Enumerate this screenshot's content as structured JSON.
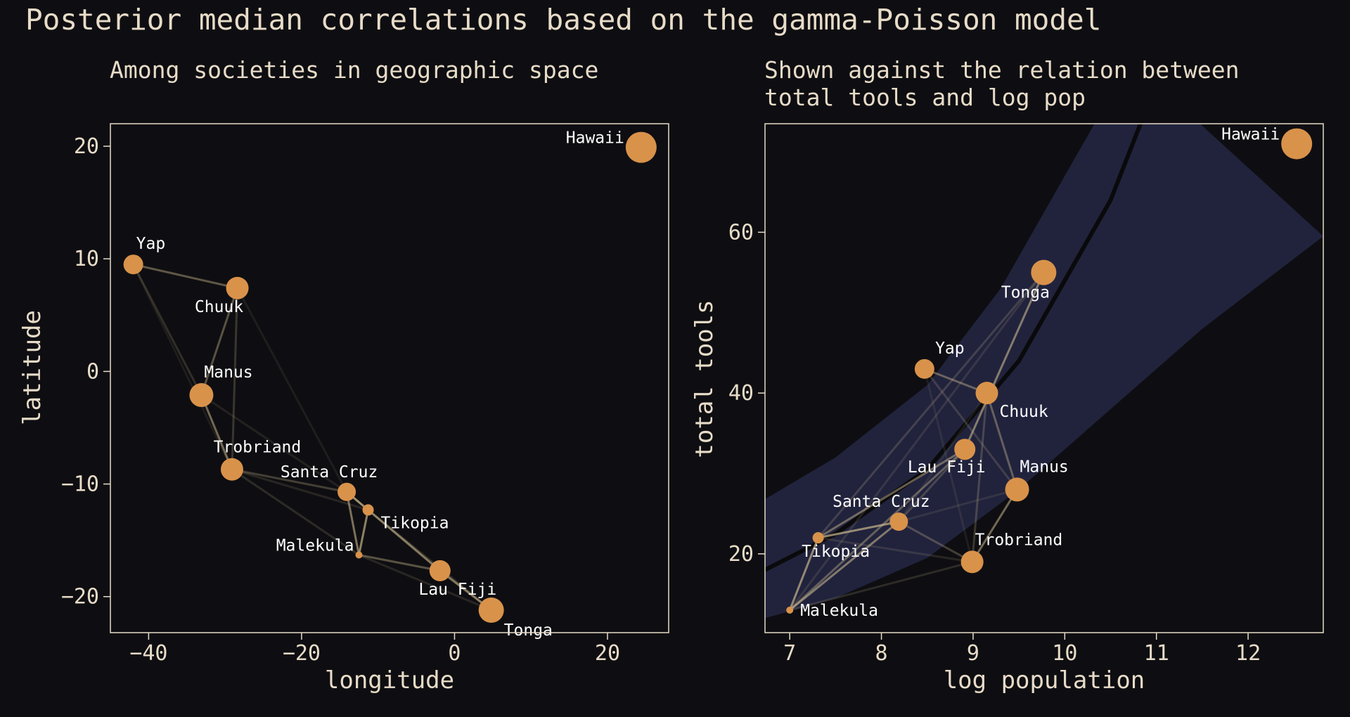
{
  "figure": {
    "title": "Posterior median correlations based on the gamma-Poisson model"
  },
  "colors": {
    "background": "#0e0e12",
    "text": "#e8dcc8",
    "point": "#d9924a",
    "edge": "#d8c495",
    "band": "#232540",
    "curve": "#0a0a0c",
    "label": "#ffffff"
  },
  "chart_data": [
    {
      "type": "scatter",
      "title": "Among societies in geographic space",
      "xlabel": "longitude",
      "ylabel": "latitude",
      "xlim": [
        -45,
        28
      ],
      "ylim": [
        -23.2,
        22
      ],
      "xticks": [
        -40,
        -20,
        0,
        20
      ],
      "yticks": [
        -20,
        -10,
        0,
        10,
        20
      ],
      "points": [
        {
          "name": "Malekula",
          "x": -12.5,
          "y": -16.3,
          "size": 5,
          "label_pos": "left"
        },
        {
          "name": "Tikopia",
          "x": -11.3,
          "y": -12.3,
          "size": 8,
          "label_pos": "below-right"
        },
        {
          "name": "Santa Cruz",
          "x": -14.1,
          "y": -10.7,
          "size": 13,
          "label_pos": "above"
        },
        {
          "name": "Yap",
          "x": -42.0,
          "y": 9.5,
          "size": 14,
          "label_pos": "above-right"
        },
        {
          "name": "Lau Fiji",
          "x": -1.9,
          "y": -17.7,
          "size": 15,
          "label_pos": "below"
        },
        {
          "name": "Trobriand",
          "x": -29.1,
          "y": -8.7,
          "size": 16,
          "label_pos": "above-left"
        },
        {
          "name": "Chuuk",
          "x": -28.4,
          "y": 7.4,
          "size": 16,
          "label_pos": "below-left"
        },
        {
          "name": "Manus",
          "x": -33.1,
          "y": -2.1,
          "size": 17,
          "label_pos": "above-right"
        },
        {
          "name": "Tonga",
          "x": 4.8,
          "y": -21.2,
          "size": 18,
          "label_pos": "below-right"
        },
        {
          "name": "Hawaii",
          "x": 24.4,
          "y": 19.9,
          "size": 22,
          "label_pos": "left"
        }
      ]
    },
    {
      "type": "scatter",
      "title": "Shown against the relation between\ntotal tools and log pop",
      "xlabel": "log population",
      "ylabel": "total tools",
      "xlim": [
        6.73,
        12.82
      ],
      "ylim": [
        10.2,
        73.5
      ],
      "xticks": [
        7,
        8,
        9,
        10,
        11,
        12
      ],
      "yticks": [
        20,
        40,
        60
      ],
      "points": [
        {
          "name": "Malekula",
          "x": 7.0,
          "y": 13,
          "size": 5,
          "label_pos": "right"
        },
        {
          "name": "Tikopia",
          "x": 7.31,
          "y": 22,
          "size": 8,
          "label_pos": "below"
        },
        {
          "name": "Santa Cruz",
          "x": 8.19,
          "y": 24,
          "size": 13,
          "label_pos": "above"
        },
        {
          "name": "Yap",
          "x": 8.47,
          "y": 43,
          "size": 14,
          "label_pos": "above-left"
        },
        {
          "name": "Lau Fiji",
          "x": 8.91,
          "y": 33,
          "size": 15,
          "label_pos": "below-left"
        },
        {
          "name": "Trobriand",
          "x": 8.99,
          "y": 19,
          "size": 16,
          "label_pos": "above-right"
        },
        {
          "name": "Chuuk",
          "x": 9.15,
          "y": 40,
          "size": 16,
          "label_pos": "below-right"
        },
        {
          "name": "Manus",
          "x": 9.48,
          "y": 28,
          "size": 17,
          "label_pos": "above-right"
        },
        {
          "name": "Tonga",
          "x": 9.77,
          "y": 55,
          "size": 18,
          "label_pos": "below-left"
        },
        {
          "name": "Hawaii",
          "x": 12.53,
          "y": 71,
          "size": 22,
          "label_pos": "left"
        }
      ],
      "fit": {
        "description": "posterior mean expected tools vs log population with 89% interval",
        "curve_points": [
          [
            6.73,
            18.0
          ],
          [
            7.5,
            22.5
          ],
          [
            8.5,
            30.5
          ],
          [
            9.5,
            44.0
          ],
          [
            10.5,
            64.0
          ],
          [
            11.05,
            80.0
          ]
        ],
        "band_upper": [
          [
            6.73,
            26.8
          ],
          [
            7.5,
            32.0
          ],
          [
            8.5,
            41.0
          ],
          [
            9.3,
            53.0
          ],
          [
            10.0,
            67.0
          ],
          [
            10.5,
            77.0
          ],
          [
            10.85,
            80.0
          ]
        ],
        "band_lower": [
          [
            6.73,
            12.0
          ],
          [
            7.5,
            14.5
          ],
          [
            8.5,
            19.5
          ],
          [
            9.5,
            28.0
          ],
          [
            10.5,
            38.0
          ],
          [
            11.5,
            48.0
          ],
          [
            12.82,
            59.5
          ]
        ]
      }
    }
  ],
  "correlations": [
    {
      "a": "Malekula",
      "b": "Tikopia",
      "rho": 0.7
    },
    {
      "a": "Tikopia",
      "b": "Santa Cruz",
      "rho": 0.72
    },
    {
      "a": "Malekula",
      "b": "Santa Cruz",
      "rho": 0.6
    },
    {
      "a": "Chuuk",
      "b": "Yap",
      "rho": 0.45
    },
    {
      "a": "Chuuk",
      "b": "Manus",
      "rho": 0.42
    },
    {
      "a": "Manus",
      "b": "Trobriand",
      "rho": 0.55
    },
    {
      "a": "Lau Fiji",
      "b": "Tonga",
      "rho": 0.62
    },
    {
      "a": "Tikopia",
      "b": "Lau Fiji",
      "rho": 0.5
    },
    {
      "a": "Malekula",
      "b": "Lau Fiji",
      "rho": 0.42
    },
    {
      "a": "Santa Cruz",
      "b": "Trobriand",
      "rho": 0.3
    },
    {
      "a": "Trobriand",
      "b": "Malekula",
      "rho": 0.18
    },
    {
      "a": "Trobriand",
      "b": "Chuuk",
      "rho": 0.25
    },
    {
      "a": "Yap",
      "b": "Manus",
      "rho": 0.2
    },
    {
      "a": "Malekula",
      "b": "Tonga",
      "rho": 0.15
    },
    {
      "a": "Santa Cruz",
      "b": "Lau Fiji",
      "rho": 0.25
    },
    {
      "a": "Tikopia",
      "b": "Tonga",
      "rho": 0.22
    },
    {
      "a": "Chuuk",
      "b": "Santa Cruz",
      "rho": 0.1
    },
    {
      "a": "Manus",
      "b": "Santa Cruz",
      "rho": 0.12
    },
    {
      "a": "Trobriand",
      "b": "Tikopia",
      "rho": 0.15
    },
    {
      "a": "Yap",
      "b": "Trobriand",
      "rho": 0.1
    }
  ]
}
